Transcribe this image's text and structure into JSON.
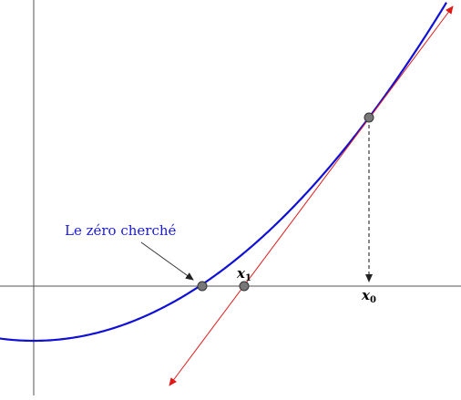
{
  "annotation": {
    "zero_label": "Le zéro cherché",
    "zero_label_color": "#1a1adb"
  },
  "points": {
    "x1_label": "x",
    "x1_sub": "1",
    "x0_label": "x",
    "x0_sub": "0"
  },
  "colors": {
    "curve": "#1010d8",
    "tangent": "#e01818",
    "axis": "#555555",
    "point_fill": "#777777",
    "point_stroke": "#333333",
    "dashed": "#111111",
    "arrow": "#333333"
  }
}
